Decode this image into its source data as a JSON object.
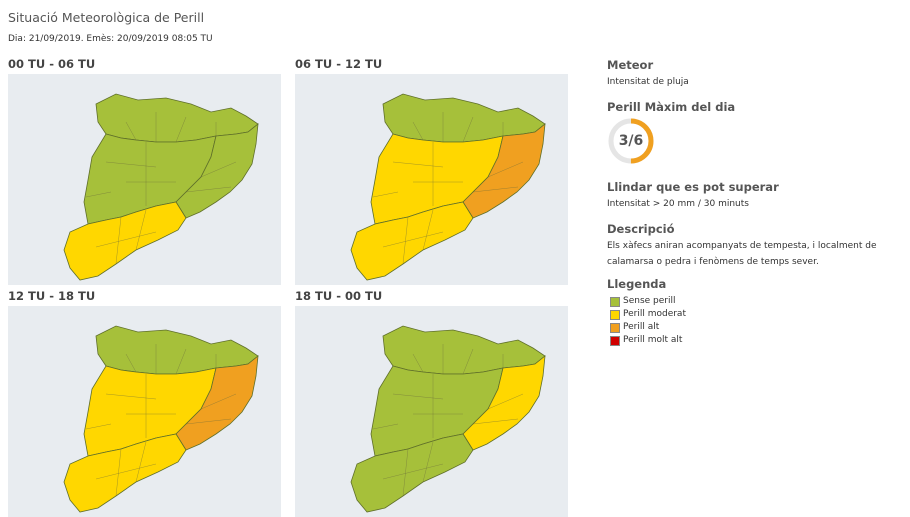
{
  "header": {
    "title": "Situació Meteorològica de Perill",
    "subtitle": "Dia: 21/09/2019. Emès: 20/09/2019 08:05 TU"
  },
  "colors": {
    "sense_perill": "#a6c03a",
    "perill_moderat": "#ffd700",
    "perill_alt": "#f0a020",
    "perill_molt_alt": "#d00000",
    "sea": "#e8ecf0"
  },
  "panels": [
    {
      "label": "00 TU - 06 TU",
      "levels": {
        "pyrenees": "sense",
        "north_central": "sense",
        "east": "sense",
        "south": "moderat"
      }
    },
    {
      "label": "06 TU - 12 TU",
      "levels": {
        "pyrenees": "sense",
        "north_central": "moderat",
        "east": "alt",
        "south": "moderat"
      }
    },
    {
      "label": "12 TU - 18 TU",
      "levels": {
        "pyrenees": "sense",
        "north_central": "moderat",
        "east": "alt",
        "south": "moderat"
      }
    },
    {
      "label": "18 TU - 00 TU",
      "levels": {
        "pyrenees": "sense",
        "north_central": "sense",
        "east": "moderat",
        "south": "sense"
      }
    }
  ],
  "sidebar": {
    "meteor_heading": "Meteor",
    "meteor_value": "Intensitat de pluja",
    "max_heading": "Perill Màxim del dia",
    "max_value": "3/6",
    "max_fraction": 0.5,
    "threshold_heading": "Llindar que es pot superar",
    "threshold_value": "Intensitat > 20 mm / 30 minuts",
    "description_heading": "Descripció",
    "description_text": "Els xàfecs aniran acompanyats de tempesta, i localment de calamarsa o pedra i fenòmens de temps sever.",
    "legend_heading": "Llegenda",
    "legend": [
      {
        "label": "Sense perill",
        "color": "#a6c03a"
      },
      {
        "label": "Perill moderat",
        "color": "#ffd700"
      },
      {
        "label": "Perill alt",
        "color": "#f0a020"
      },
      {
        "label": "Perill molt alt",
        "color": "#d00000"
      }
    ]
  }
}
